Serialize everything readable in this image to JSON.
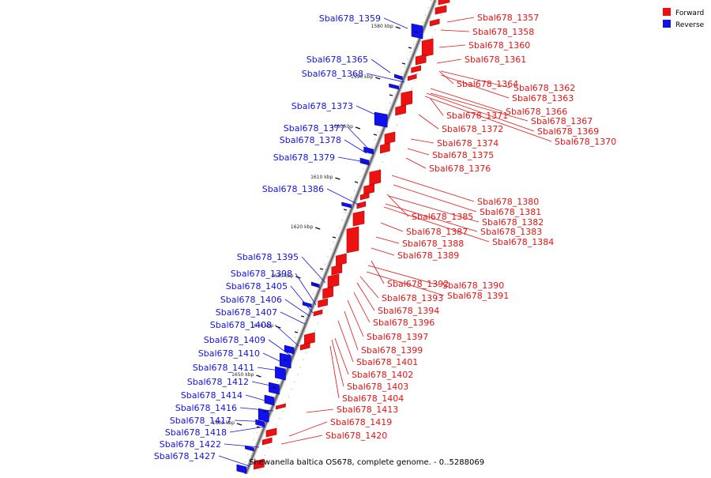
{
  "colors": {
    "forward": "#ee1111",
    "forward_dark": "#aa0000",
    "reverse": "#1111ee",
    "reverse_dark": "#000099",
    "backbone": "#888888",
    "tick": "#111111",
    "bg": "#ffffff"
  },
  "legend": {
    "forward_label": "Forward",
    "reverse_label": "Reverse"
  },
  "caption": "Shewanella baltica OS678, complete genome. - 0..5288069",
  "ticks": [
    "1580 kbp",
    "1590 kbp",
    "1600 kbp",
    "1610 kbp",
    "1620 kbp",
    "1630 kbp",
    "1640 kbp",
    "1650 kbp",
    "1660 kbp"
  ],
  "forward_labels": [
    "Sbal678_1357",
    "Sbal678_1358",
    "Sbal678_1360",
    "Sbal678_1361",
    "Sbal678_1364",
    "Sbal678_1362",
    "Sbal678_1363",
    "Sbal678_1366",
    "Sbal678_1371",
    "Sbal678_1367",
    "Sbal678_1372",
    "Sbal678_1369",
    "Sbal678_1370",
    "Sbal678_1374",
    "Sbal678_1375",
    "Sbal678_1376",
    "Sbal678_1380",
    "Sbal678_1381",
    "Sbal678_1385",
    "Sbal678_1382",
    "Sbal678_1383",
    "Sbal678_1387",
    "Sbal678_1384",
    "Sbal678_1388",
    "Sbal678_1389",
    "Sbal678_1392",
    "Sbal678_1390",
    "Sbal678_1391",
    "Sbal678_1393",
    "Sbal678_1394",
    "Sbal678_1396",
    "Sbal678_1397",
    "Sbal678_1399",
    "Sbal678_1401",
    "Sbal678_1402",
    "Sbal678_1403",
    "Sbal678_1404",
    "Sbal678_1413",
    "Sbal678_1419",
    "Sbal678_1420"
  ],
  "reverse_labels": [
    "Sbal678_1359",
    "Sbal678_1365",
    "Sbal678_1368",
    "Sbal678_1373",
    "Sbal678_1377",
    "Sbal678_1378",
    "Sbal678_1379",
    "Sbal678_1386",
    "Sbal678_1395",
    "Sbal678_1398",
    "Sbal678_1405",
    "Sbal678_1406",
    "Sbal678_1407",
    "Sbal678_1408",
    "Sbal678_1409",
    "Sbal678_1410",
    "Sbal678_1411",
    "Sbal678_1412",
    "Sbal678_1414",
    "Sbal678_1416",
    "Sbal678_1417",
    "Sbal678_1418",
    "Sbal678_1422",
    "Sbal678_1427"
  ]
}
